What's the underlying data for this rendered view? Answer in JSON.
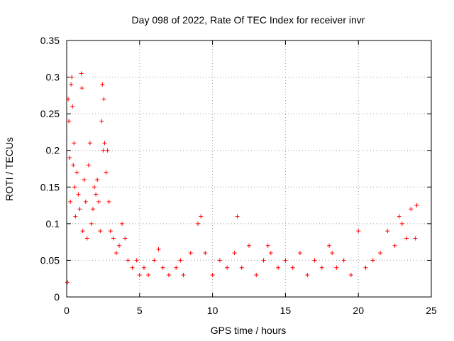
{
  "chart_data": {
    "type": "scatter",
    "title": "Day 098 of 2022, Rate Of TEC Index for receiver invr",
    "xlabel": "GPS time / hours",
    "ylabel": "ROTI / TECUs",
    "xlim": [
      0,
      25
    ],
    "ylim": [
      0,
      0.35
    ],
    "x_ticks": [
      0,
      5,
      10,
      15,
      20,
      25
    ],
    "x_tick_labels": [
      "0",
      "5",
      "10",
      "15",
      "20",
      "25"
    ],
    "y_ticks": [
      0,
      0.05,
      0.1,
      0.15,
      0.2,
      0.25,
      0.3,
      0.35
    ],
    "y_tick_labels": [
      "0",
      "0.05",
      "0.1",
      "0.15",
      "0.2",
      "0.25",
      "0.3",
      "0.35"
    ],
    "grid": true,
    "marker": "+",
    "color": "#ff0000",
    "series": [
      {
        "name": "ROTI",
        "x": [
          0.05,
          0.1,
          0.15,
          0.2,
          0.25,
          0.3,
          0.35,
          0.4,
          0.45,
          0.5,
          0.55,
          0.6,
          0.7,
          0.8,
          0.9,
          1.0,
          1.05,
          1.1,
          1.2,
          1.3,
          1.4,
          1.5,
          1.6,
          1.7,
          1.8,
          1.9,
          2.0,
          2.1,
          2.2,
          2.3,
          2.4,
          2.45,
          2.5,
          2.55,
          2.6,
          2.7,
          2.8,
          2.9,
          3.0,
          3.2,
          3.4,
          3.6,
          3.8,
          4.0,
          4.2,
          4.5,
          4.8,
          5.0,
          5.3,
          5.6,
          6.0,
          6.3,
          6.6,
          7.0,
          7.5,
          7.8,
          8.0,
          8.5,
          9.0,
          9.2,
          9.5,
          10.0,
          10.5,
          11.0,
          11.5,
          11.7,
          12.0,
          12.5,
          13.0,
          13.5,
          13.8,
          14.0,
          14.5,
          15.0,
          15.5,
          16.0,
          16.5,
          17.0,
          17.5,
          18.0,
          18.2,
          18.5,
          19.0,
          19.5,
          20.0,
          20.5,
          21.0,
          21.5,
          22.0,
          22.5,
          22.8,
          23.0,
          23.3,
          23.6,
          23.9,
          24.0
        ],
        "y": [
          0.02,
          0.27,
          0.24,
          0.19,
          0.13,
          0.29,
          0.3,
          0.26,
          0.18,
          0.21,
          0.15,
          0.11,
          0.17,
          0.14,
          0.12,
          0.305,
          0.285,
          0.09,
          0.16,
          0.13,
          0.08,
          0.18,
          0.21,
          0.1,
          0.12,
          0.15,
          0.14,
          0.16,
          0.13,
          0.09,
          0.24,
          0.29,
          0.2,
          0.27,
          0.21,
          0.17,
          0.2,
          0.13,
          0.09,
          0.08,
          0.06,
          0.07,
          0.1,
          0.08,
          0.05,
          0.04,
          0.05,
          0.03,
          0.04,
          0.03,
          0.05,
          0.065,
          0.04,
          0.03,
          0.04,
          0.05,
          0.03,
          0.06,
          0.1,
          0.11,
          0.06,
          0.03,
          0.05,
          0.04,
          0.06,
          0.11,
          0.04,
          0.07,
          0.03,
          0.05,
          0.07,
          0.06,
          0.04,
          0.05,
          0.04,
          0.06,
          0.03,
          0.05,
          0.04,
          0.07,
          0.06,
          0.04,
          0.05,
          0.03,
          0.09,
          0.04,
          0.05,
          0.06,
          0.09,
          0.07,
          0.11,
          0.1,
          0.08,
          0.12,
          0.08,
          0.125
        ]
      }
    ]
  }
}
